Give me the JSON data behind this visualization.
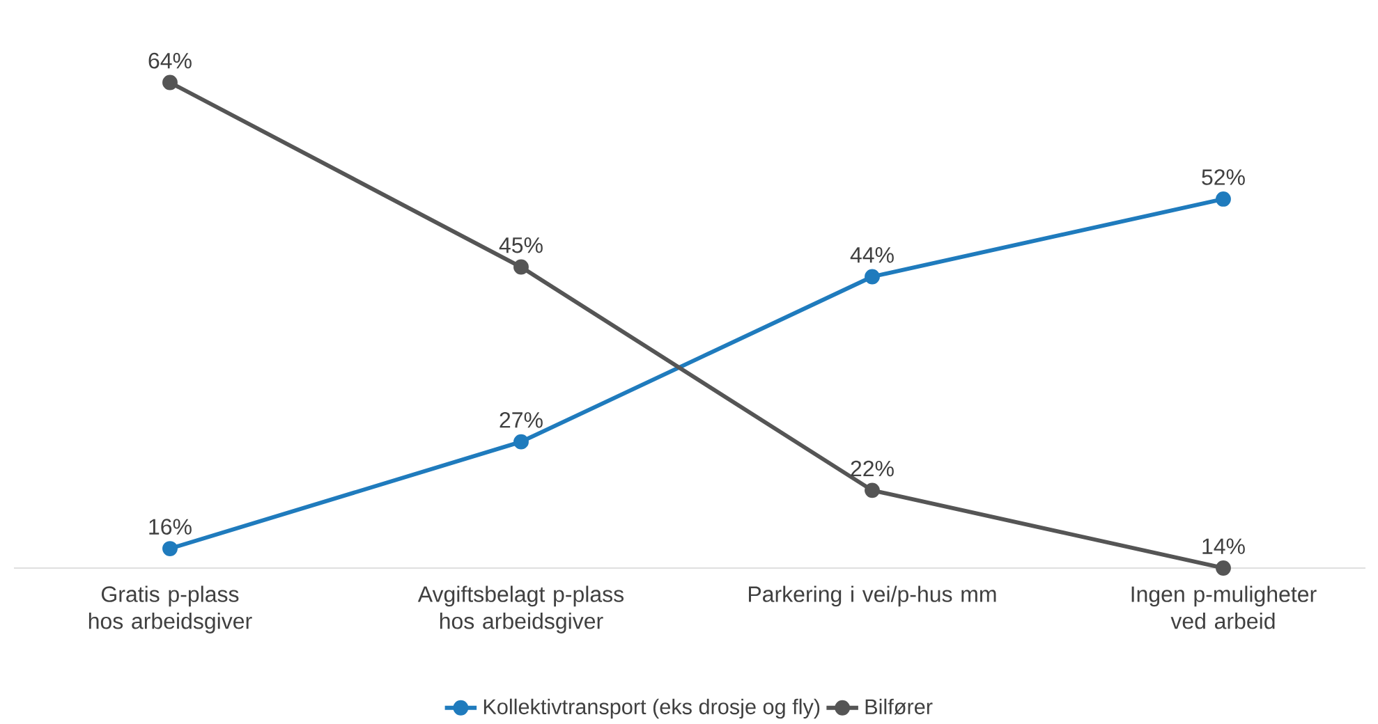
{
  "chart_data": {
    "type": "line",
    "categories": [
      "Gratis p-plass hos arbeidsgiver",
      "Avgiftsbelagt p-plass hos arbeidsgiver",
      "Parkering i vei/p-hus mm",
      "Ingen p-muligheter ved arbeid"
    ],
    "series": [
      {
        "name": "Kollektivtransport (eks drosje og fly)",
        "color": "#1f7bbd",
        "values": [
          16,
          27,
          44,
          52
        ],
        "value_labels": [
          "16%",
          "27%",
          "44%",
          "52%"
        ]
      },
      {
        "name": "Bilfører",
        "color": "#555555",
        "values": [
          64,
          45,
          22,
          14
        ],
        "value_labels": [
          "64%",
          "45%",
          "22%",
          "14%"
        ]
      }
    ],
    "grid": false,
    "legend": "bottom",
    "marker": "circle",
    "line_style": "solid",
    "tick_labels": "x"
  }
}
